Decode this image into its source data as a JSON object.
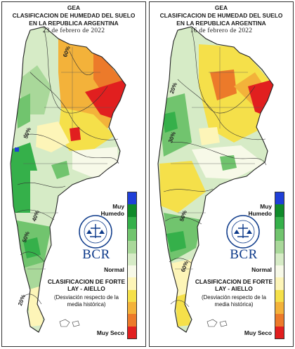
{
  "panels": [
    {
      "title_line1": "GEA",
      "title_line2": "CLASIFICACION DE HUMEDAD DEL SUELO",
      "title_line3": "EN LA REPUBLICA ARGENTINA",
      "date": "23 de febrero de 2022",
      "percent_labels": [
        "60%",
        "50%",
        "40%",
        "50%",
        "20%"
      ]
    },
    {
      "title_line1": "GEA",
      "title_line2": "CLASIFICACION DE HUMEDAD DEL SUELO",
      "title_line3": "EN LA REPUBLICA ARGENTINA",
      "date": "16 de febrero de 2022",
      "percent_labels": [
        "20%",
        "30%",
        "50%",
        "60%"
      ]
    }
  ],
  "legend": {
    "label_wet": "Muy Humedo",
    "label_normal": "Normal",
    "label_dry": "Muy Seco",
    "classification_title": "CLASIFICACION DE FORTE LAY - AIELLO",
    "classification_note": "(Desviación respecto de la media histórica)",
    "brand": "BCR",
    "seal_text": "BOLSA DE COMERCIO DE ROSARIO",
    "scale_colors": [
      "#1f3fd8",
      "#0f8a2a",
      "#35b04a",
      "#71c46e",
      "#a9d89a",
      "#d6ebc6",
      "#f7f9e8",
      "#fdf5b8",
      "#f5e04a",
      "#f3b23a",
      "#ec7a2a",
      "#e11f1f"
    ]
  }
}
